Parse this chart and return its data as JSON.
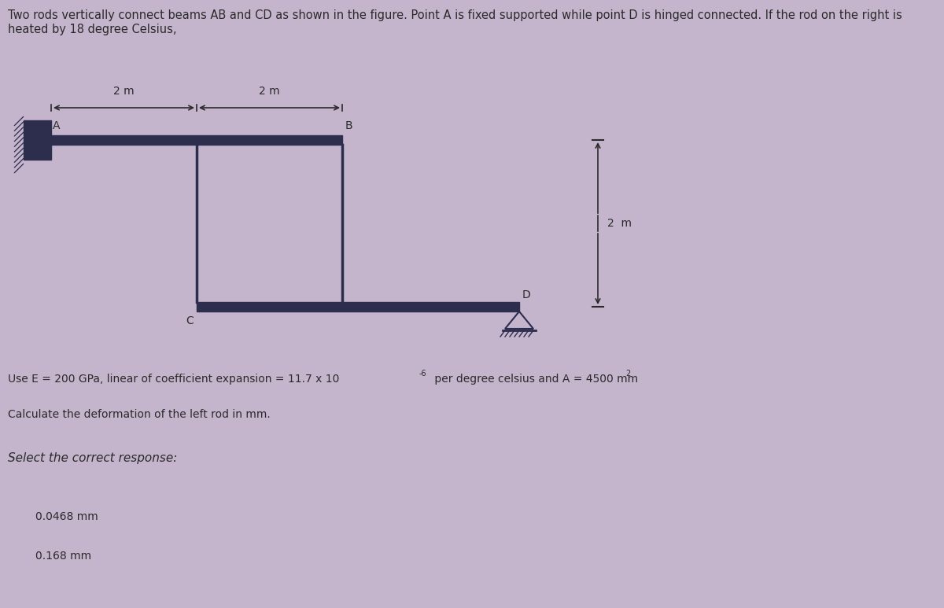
{
  "bg_color": "#c4b4cc",
  "title_line1": "Two rods vertically connect beams AB and CD as shown in the figure. Point A is fixed supported while point D is hinged connected. If the rod on the right is",
  "title_line2": "heated by 18 degree Celsius,",
  "problem_text1": "Use E = 200 GPa, linear of coefficient expansion = 11.7 x 10",
  "problem_sup": "-6",
  "problem_text1b": " per degree celsius and A = 4500 mm",
  "problem_sup2": "2",
  "problem_text2": "Calculate the deformation of the left rod in mm.",
  "problem_text3": "Select the correct response:",
  "answer1": "0.0468 mm",
  "answer2": "0.168 mm",
  "beam_color": "#2d2d4e",
  "text_color": "#2a2a2a",
  "dim_color": "#2a2a2a",
  "title_fontsize": 10.5,
  "label_fontsize": 10,
  "dim_fontsize": 10,
  "answer_fontsize": 10,
  "select_fontsize": 11,
  "body_fontsize": 10
}
